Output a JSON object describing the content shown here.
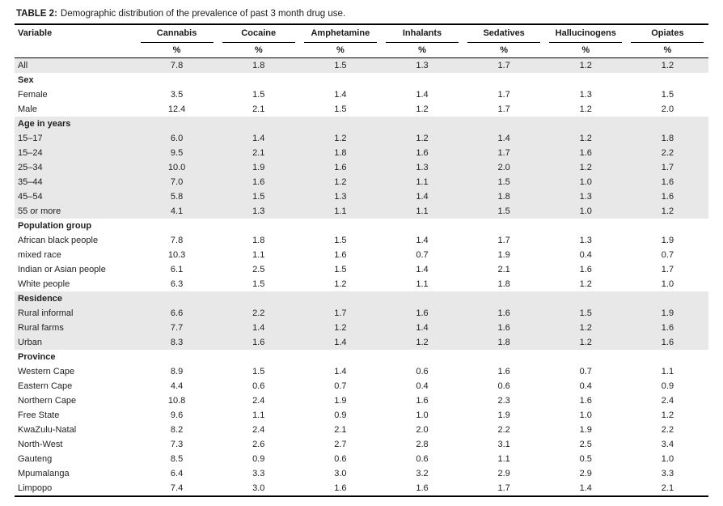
{
  "table": {
    "title_label": "TABLE 2:",
    "title_text": "Demographic distribution of the prevalence of past 3 month drug use.",
    "variable_header": "Variable",
    "columns": [
      "Cannabis",
      "Cocaine",
      "Amphetamine",
      "Inhalants",
      "Sedatives",
      "Hallucinogens",
      "Opiates"
    ],
    "unit_label": "%",
    "rows": [
      {
        "label": "All",
        "type": "data",
        "shaded": true,
        "values": [
          "7.8",
          "1.8",
          "1.5",
          "1.3",
          "1.7",
          "1.2",
          "1.2"
        ]
      },
      {
        "label": "Sex",
        "type": "group",
        "shaded": false,
        "values": []
      },
      {
        "label": "Female",
        "type": "data",
        "shaded": false,
        "values": [
          "3.5",
          "1.5",
          "1.4",
          "1.4",
          "1.7",
          "1.3",
          "1.5"
        ]
      },
      {
        "label": "Male",
        "type": "data",
        "shaded": false,
        "values": [
          "12.4",
          "2.1",
          "1.5",
          "1.2",
          "1.7",
          "1.2",
          "2.0"
        ]
      },
      {
        "label": "Age in years",
        "type": "group",
        "shaded": true,
        "values": []
      },
      {
        "label": "15–17",
        "type": "data",
        "shaded": true,
        "values": [
          "6.0",
          "1.4",
          "1.2",
          "1.2",
          "1.4",
          "1.2",
          "1.8"
        ]
      },
      {
        "label": "15–24",
        "type": "data",
        "shaded": true,
        "values": [
          "9.5",
          "2.1",
          "1.8",
          "1.6",
          "1.7",
          "1.6",
          "2.2"
        ]
      },
      {
        "label": "25–34",
        "type": "data",
        "shaded": true,
        "values": [
          "10.0",
          "1.9",
          "1.6",
          "1.3",
          "2.0",
          "1.2",
          "1.7"
        ]
      },
      {
        "label": "35–44",
        "type": "data",
        "shaded": true,
        "values": [
          "7.0",
          "1.6",
          "1.2",
          "1.1",
          "1.5",
          "1.0",
          "1.6"
        ]
      },
      {
        "label": "45–54",
        "type": "data",
        "shaded": true,
        "values": [
          "5.8",
          "1.5",
          "1.3",
          "1.4",
          "1.8",
          "1.3",
          "1.6"
        ]
      },
      {
        "label": "55 or more",
        "type": "data",
        "shaded": true,
        "values": [
          "4.1",
          "1.3",
          "1.1",
          "1.1",
          "1.5",
          "1.0",
          "1.2"
        ]
      },
      {
        "label": "Population group",
        "type": "group",
        "shaded": false,
        "values": []
      },
      {
        "label": "African black people",
        "type": "data",
        "shaded": false,
        "values": [
          "7.8",
          "1.8",
          "1.5",
          "1.4",
          "1.7",
          "1.3",
          "1.9"
        ]
      },
      {
        "label": "mixed race",
        "type": "data",
        "shaded": false,
        "values": [
          "10.3",
          "1.1",
          "1.6",
          "0.7",
          "1.9",
          "0.4",
          "0.7"
        ]
      },
      {
        "label": "Indian or Asian people",
        "type": "data",
        "shaded": false,
        "values": [
          "6.1",
          "2.5",
          "1.5",
          "1.4",
          "2.1",
          "1.6",
          "1.7"
        ]
      },
      {
        "label": "White people",
        "type": "data",
        "shaded": false,
        "values": [
          "6.3",
          "1.5",
          "1.2",
          "1.1",
          "1.8",
          "1.2",
          "1.0"
        ]
      },
      {
        "label": "Residence",
        "type": "group",
        "shaded": true,
        "values": []
      },
      {
        "label": "Rural informal",
        "type": "data",
        "shaded": true,
        "values": [
          "6.6",
          "2.2",
          "1.7",
          "1.6",
          "1.6",
          "1.5",
          "1.9"
        ]
      },
      {
        "label": "Rural farms",
        "type": "data",
        "shaded": true,
        "values": [
          "7.7",
          "1.4",
          "1.2",
          "1.4",
          "1.6",
          "1.2",
          "1.6"
        ]
      },
      {
        "label": "Urban",
        "type": "data",
        "shaded": true,
        "values": [
          "8.3",
          "1.6",
          "1.4",
          "1.2",
          "1.8",
          "1.2",
          "1.6"
        ]
      },
      {
        "label": "Province",
        "type": "group",
        "shaded": false,
        "values": []
      },
      {
        "label": "Western Cape",
        "type": "data",
        "shaded": false,
        "values": [
          "8.9",
          "1.5",
          "1.4",
          "0.6",
          "1.6",
          "0.7",
          "1.1"
        ]
      },
      {
        "label": "Eastern Cape",
        "type": "data",
        "shaded": false,
        "values": [
          "4.4",
          "0.6",
          "0.7",
          "0.4",
          "0.6",
          "0.4",
          "0.9"
        ]
      },
      {
        "label": "Northern Cape",
        "type": "data",
        "shaded": false,
        "values": [
          "10.8",
          "2.4",
          "1.9",
          "1.6",
          "2.3",
          "1.6",
          "2.4"
        ]
      },
      {
        "label": "Free State",
        "type": "data",
        "shaded": false,
        "values": [
          "9.6",
          "1.1",
          "0.9",
          "1.0",
          "1.9",
          "1.0",
          "1.2"
        ]
      },
      {
        "label": "KwaZulu-Natal",
        "type": "data",
        "shaded": false,
        "values": [
          "8.2",
          "2.4",
          "2.1",
          "2.0",
          "2.2",
          "1.9",
          "2.2"
        ]
      },
      {
        "label": "North-West",
        "type": "data",
        "shaded": false,
        "values": [
          "7.3",
          "2.6",
          "2.7",
          "2.8",
          "3.1",
          "2.5",
          "3.4"
        ]
      },
      {
        "label": "Gauteng",
        "type": "data",
        "shaded": false,
        "values": [
          "8.5",
          "0.9",
          "0.6",
          "0.6",
          "1.1",
          "0.5",
          "1.0"
        ]
      },
      {
        "label": "Mpumalanga",
        "type": "data",
        "shaded": false,
        "values": [
          "6.4",
          "3.3",
          "3.0",
          "3.2",
          "2.9",
          "2.9",
          "3.3"
        ]
      },
      {
        "label": "Limpopo",
        "type": "data",
        "shaded": false,
        "values": [
          "7.4",
          "3.0",
          "1.6",
          "1.6",
          "1.7",
          "1.4",
          "2.1"
        ]
      }
    ]
  },
  "colors": {
    "shaded_row": "#e8e8e8",
    "border": "#000000",
    "text": "#1f1f1f"
  },
  "chart_data": {
    "type": "table",
    "title": "TABLE 2: Demographic distribution of the prevalence of past 3 month drug use.",
    "columns": [
      "Variable",
      "Cannabis %",
      "Cocaine %",
      "Amphetamine %",
      "Inhalants %",
      "Sedatives %",
      "Hallucinogens %",
      "Opiates %"
    ],
    "rows": [
      [
        "All",
        7.8,
        1.8,
        1.5,
        1.3,
        1.7,
        1.2,
        1.2
      ],
      [
        "Female",
        3.5,
        1.5,
        1.4,
        1.4,
        1.7,
        1.3,
        1.5
      ],
      [
        "Male",
        12.4,
        2.1,
        1.5,
        1.2,
        1.7,
        1.2,
        2.0
      ],
      [
        "15–17",
        6.0,
        1.4,
        1.2,
        1.2,
        1.4,
        1.2,
        1.8
      ],
      [
        "15–24",
        9.5,
        2.1,
        1.8,
        1.6,
        1.7,
        1.6,
        2.2
      ],
      [
        "25–34",
        10.0,
        1.9,
        1.6,
        1.3,
        2.0,
        1.2,
        1.7
      ],
      [
        "35–44",
        7.0,
        1.6,
        1.2,
        1.1,
        1.5,
        1.0,
        1.6
      ],
      [
        "45–54",
        5.8,
        1.5,
        1.3,
        1.4,
        1.8,
        1.3,
        1.6
      ],
      [
        "55 or more",
        4.1,
        1.3,
        1.1,
        1.1,
        1.5,
        1.0,
        1.2
      ],
      [
        "African black people",
        7.8,
        1.8,
        1.5,
        1.4,
        1.7,
        1.3,
        1.9
      ],
      [
        "mixed race",
        10.3,
        1.1,
        1.6,
        0.7,
        1.9,
        0.4,
        0.7
      ],
      [
        "Indian or Asian people",
        6.1,
        2.5,
        1.5,
        1.4,
        2.1,
        1.6,
        1.7
      ],
      [
        "White people",
        6.3,
        1.5,
        1.2,
        1.1,
        1.8,
        1.2,
        1.0
      ],
      [
        "Rural informal",
        6.6,
        2.2,
        1.7,
        1.6,
        1.6,
        1.5,
        1.9
      ],
      [
        "Rural farms",
        7.7,
        1.4,
        1.2,
        1.4,
        1.6,
        1.2,
        1.6
      ],
      [
        "Urban",
        8.3,
        1.6,
        1.4,
        1.2,
        1.8,
        1.2,
        1.6
      ],
      [
        "Western Cape",
        8.9,
        1.5,
        1.4,
        0.6,
        1.6,
        0.7,
        1.1
      ],
      [
        "Eastern Cape",
        4.4,
        0.6,
        0.7,
        0.4,
        0.6,
        0.4,
        0.9
      ],
      [
        "Northern Cape",
        10.8,
        2.4,
        1.9,
        1.6,
        2.3,
        1.6,
        2.4
      ],
      [
        "Free State",
        9.6,
        1.1,
        0.9,
        1.0,
        1.9,
        1.0,
        1.2
      ],
      [
        "KwaZulu-Natal",
        8.2,
        2.4,
        2.1,
        2.0,
        2.2,
        1.9,
        2.2
      ],
      [
        "North-West",
        7.3,
        2.6,
        2.7,
        2.8,
        3.1,
        2.5,
        3.4
      ],
      [
        "Gauteng",
        8.5,
        0.9,
        0.6,
        0.6,
        1.1,
        0.5,
        1.0
      ],
      [
        "Mpumalanga",
        6.4,
        3.3,
        3.0,
        3.2,
        2.9,
        2.9,
        3.3
      ],
      [
        "Limpopo",
        7.4,
        3.0,
        1.6,
        1.6,
        1.7,
        1.4,
        2.1
      ]
    ]
  }
}
